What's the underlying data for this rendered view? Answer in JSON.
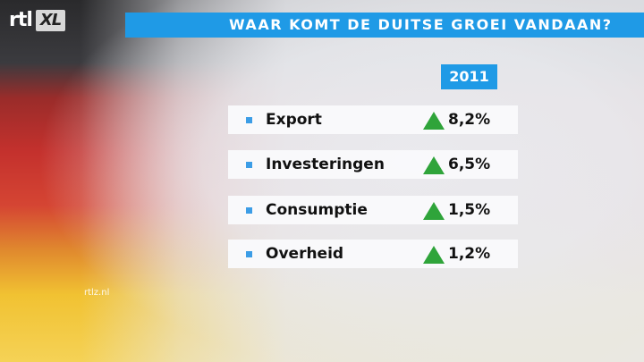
{
  "logo": {
    "rtl": "rtl",
    "xl": "XL"
  },
  "title": "WAAR KOMT DE DUITSE GROEI VANDAAN?",
  "year": "2011",
  "rows": [
    {
      "label": "Export",
      "value": "8,2%"
    },
    {
      "label": "Investeringen",
      "value": "6,5%"
    },
    {
      "label": "Consumptie",
      "value": "1,5%"
    },
    {
      "label": "Overheid",
      "value": "1,2%"
    }
  ],
  "watermark": "rtlz.nl",
  "colors": {
    "accent": "#1f9ae6",
    "arrow": "#2fa43a"
  }
}
